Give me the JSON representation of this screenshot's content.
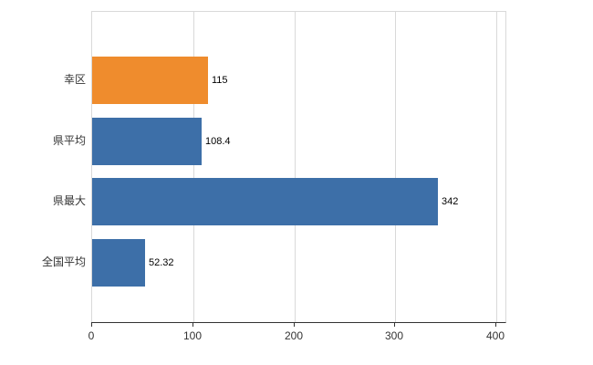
{
  "chart_data": {
    "type": "bar",
    "orientation": "horizontal",
    "categories": [
      "幸区",
      "県平均",
      "県最大",
      "全国平均"
    ],
    "values": [
      115,
      108.4,
      342,
      52.32
    ],
    "value_labels": [
      "115",
      "108.4",
      "342",
      "52.32"
    ],
    "bar_colors": [
      "#ef8c2d",
      "#3d6fa8",
      "#3d6fa8",
      "#3d6fa8"
    ],
    "xlim": [
      0,
      400
    ],
    "x_ticks": [
      0,
      100,
      200,
      300,
      400
    ],
    "x_tick_labels": [
      "0",
      "100",
      "200",
      "300",
      "400"
    ],
    "grid": true,
    "legend": "none",
    "title": ""
  },
  "colors": {
    "grid": "#d9d9d9",
    "axis": "#333333",
    "text": "#333333",
    "background": "#ffffff"
  }
}
